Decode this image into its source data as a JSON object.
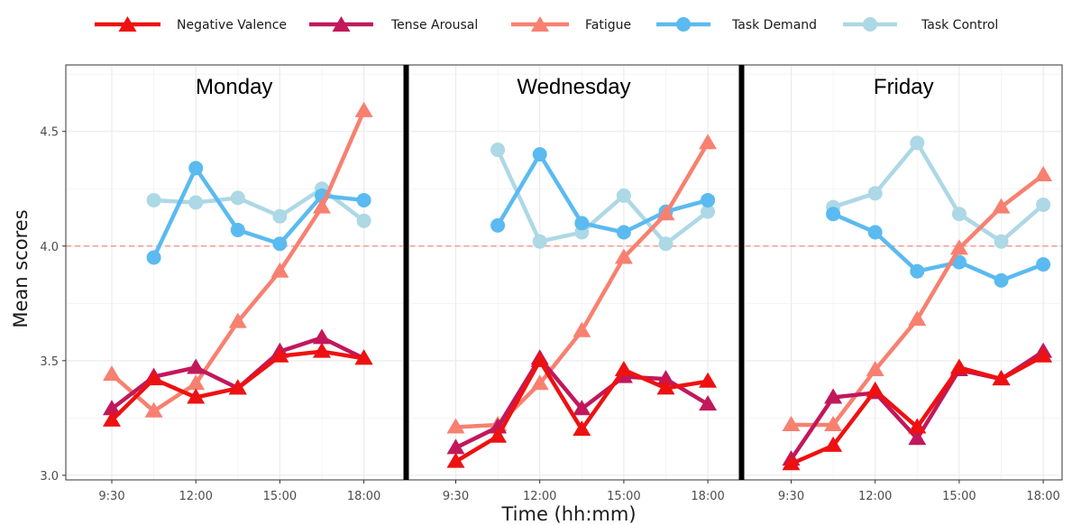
{
  "chart_data": {
    "type": "line",
    "x": [
      "9:30",
      "10:30",
      "12:00",
      "13:30",
      "15:00",
      "16:30",
      "18:00"
    ],
    "x_tick_labels": [
      "9:30",
      "12:00",
      "15:00",
      "18:00"
    ],
    "xlabel": "Time (hh:mm)",
    "ylabel": "Mean scores",
    "ylim": [
      2.98,
      4.79
    ],
    "y_ticks": [
      "3.0",
      "3.5",
      "4.0",
      "4.5"
    ],
    "reference_line": 4.0,
    "reference_color": "#F4877A",
    "grid": true,
    "legend_position": "top",
    "series_styles": [
      {
        "name": "Negative Valence",
        "color": "#EE1111",
        "marker": "triangle"
      },
      {
        "name": "Tense Arousal",
        "color": "#C2185B",
        "marker": "triangle"
      },
      {
        "name": "Fatigue",
        "color": "#F88070",
        "marker": "triangle"
      },
      {
        "name": "Task Demand",
        "color": "#5BBAF0",
        "marker": "circle"
      },
      {
        "name": "Task Control",
        "color": "#ADD8E6",
        "marker": "circle"
      }
    ],
    "panels": [
      {
        "title": "Monday",
        "series": [
          {
            "name": "Negative Valence",
            "values": [
              3.24,
              3.42,
              3.34,
              3.38,
              3.52,
              3.54,
              3.51
            ]
          },
          {
            "name": "Tense Arousal",
            "values": [
              3.29,
              3.43,
              3.47,
              3.38,
              3.54,
              3.6,
              3.51
            ]
          },
          {
            "name": "Fatigue",
            "values": [
              3.44,
              3.28,
              3.4,
              3.67,
              3.89,
              4.17,
              4.59
            ]
          },
          {
            "name": "Task Demand",
            "values": [
              null,
              3.95,
              4.34,
              4.07,
              4.01,
              4.22,
              4.2
            ]
          },
          {
            "name": "Task Control",
            "values": [
              null,
              4.2,
              4.19,
              4.21,
              4.13,
              4.25,
              4.11
            ]
          }
        ]
      },
      {
        "title": "Wednesday",
        "series": [
          {
            "name": "Negative Valence",
            "values": [
              3.06,
              3.17,
              3.5,
              3.2,
              3.46,
              3.38,
              3.41
            ]
          },
          {
            "name": "Tense Arousal",
            "values": [
              3.12,
              3.21,
              3.51,
              3.29,
              3.43,
              3.42,
              3.31
            ]
          },
          {
            "name": "Fatigue",
            "values": [
              3.21,
              3.22,
              3.4,
              3.63,
              3.95,
              4.14,
              4.45
            ]
          },
          {
            "name": "Task Demand",
            "values": [
              null,
              4.09,
              4.4,
              4.1,
              4.06,
              4.15,
              4.2
            ]
          },
          {
            "name": "Task Control",
            "values": [
              null,
              4.42,
              4.02,
              4.06,
              4.22,
              4.01,
              4.15
            ]
          }
        ]
      },
      {
        "title": "Friday",
        "series": [
          {
            "name": "Negative Valence",
            "values": [
              3.05,
              3.13,
              3.37,
              3.21,
              3.47,
              3.42,
              3.52
            ]
          },
          {
            "name": "Tense Arousal",
            "values": [
              3.07,
              3.34,
              3.36,
              3.16,
              3.46,
              3.42,
              3.54
            ]
          },
          {
            "name": "Fatigue",
            "values": [
              3.22,
              3.22,
              3.46,
              3.68,
              3.99,
              4.17,
              4.31
            ]
          },
          {
            "name": "Task Demand",
            "values": [
              null,
              4.14,
              4.06,
              3.89,
              3.93,
              3.85,
              3.92
            ]
          },
          {
            "name": "Task Control",
            "values": [
              null,
              4.17,
              4.23,
              4.45,
              4.14,
              4.02,
              4.18
            ]
          }
        ]
      }
    ]
  }
}
